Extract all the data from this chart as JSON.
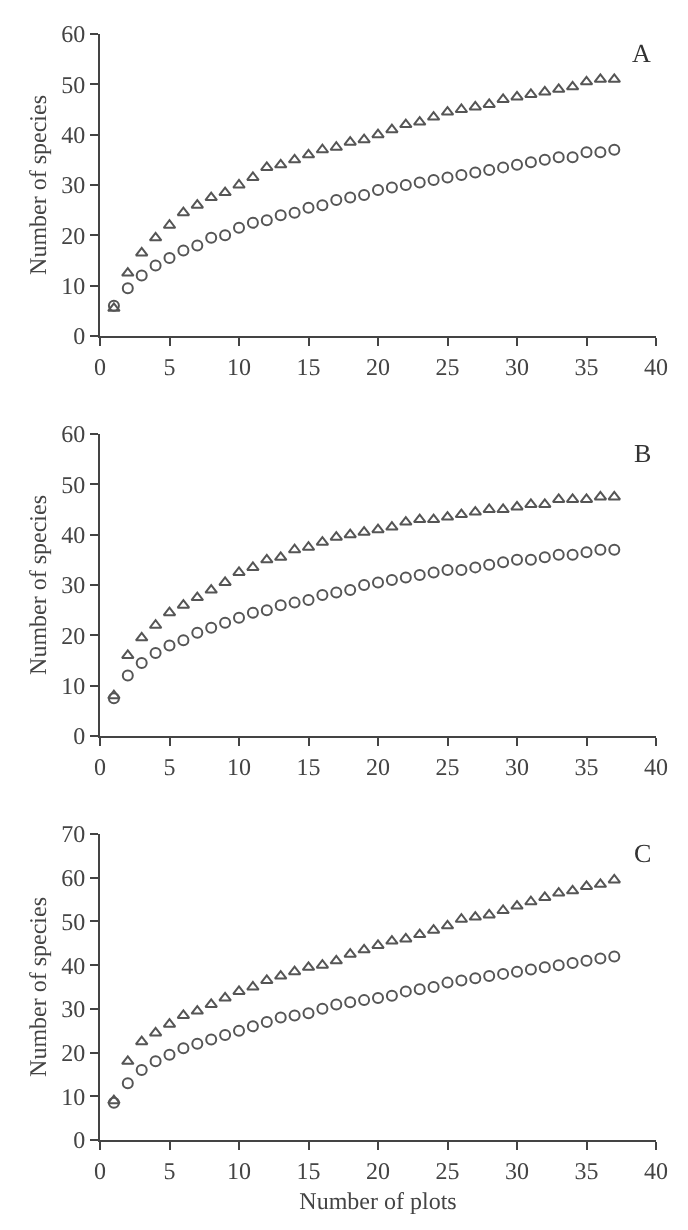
{
  "chart_data": [
    {
      "type": "scatter",
      "ylabel": "Number of species",
      "annotations": [
        "A"
      ],
      "xlim": [
        0,
        40
      ],
      "xticks": [
        0,
        5,
        10,
        15,
        20,
        25,
        30,
        35,
        40
      ],
      "ylim": [
        0,
        60
      ],
      "yticks": [
        0,
        10,
        20,
        30,
        40,
        50,
        60
      ],
      "x": [
        1,
        2,
        3,
        4,
        5,
        6,
        7,
        8,
        9,
        10,
        11,
        12,
        13,
        14,
        15,
        16,
        17,
        18,
        19,
        20,
        21,
        22,
        23,
        24,
        25,
        26,
        27,
        28,
        29,
        30,
        31,
        32,
        33,
        34,
        35,
        36,
        37
      ],
      "series": [
        {
          "color": "#555555",
          "marker": "triangle",
          "values": [
            5.5,
            12.5,
            16.5,
            19.5,
            22,
            24.5,
            26,
            27.5,
            28.5,
            30,
            31.5,
            33.5,
            34,
            35,
            36,
            37,
            37.5,
            38.5,
            39,
            40,
            41,
            42,
            42.5,
            43.5,
            44.5,
            45,
            45.5,
            46,
            47,
            47.5,
            48,
            48.5,
            49,
            49.5,
            50.5,
            51,
            51
          ]
        },
        {
          "color": "#555555",
          "marker": "circle",
          "values": [
            6,
            9.5,
            12,
            14,
            15.5,
            17,
            18,
            19.5,
            20,
            21.5,
            22.5,
            23,
            24,
            24.5,
            25.5,
            26,
            27,
            27.5,
            28,
            29,
            29.5,
            30,
            30.5,
            31,
            31.5,
            32,
            32.5,
            33,
            33.5,
            34,
            34.5,
            35,
            35.5,
            35.5,
            36.5,
            36.5,
            37
          ]
        }
      ]
    },
    {
      "type": "scatter",
      "ylabel": "Number of species",
      "annotations": [
        "B"
      ],
      "xlim": [
        0,
        40
      ],
      "xticks": [
        0,
        5,
        10,
        15,
        20,
        25,
        30,
        35,
        40
      ],
      "ylim": [
        0,
        60
      ],
      "yticks": [
        0,
        10,
        20,
        30,
        40,
        50,
        60
      ],
      "x": [
        1,
        2,
        3,
        4,
        5,
        6,
        7,
        8,
        9,
        10,
        11,
        12,
        13,
        14,
        15,
        16,
        17,
        18,
        19,
        20,
        21,
        22,
        23,
        24,
        25,
        26,
        27,
        28,
        29,
        30,
        31,
        32,
        33,
        34,
        35,
        36,
        37
      ],
      "series": [
        {
          "color": "#555555",
          "marker": "triangle",
          "values": [
            8,
            16,
            19.5,
            22,
            24.5,
            26,
            27.5,
            29,
            30.5,
            32.5,
            33.5,
            35,
            35.5,
            37,
            37.5,
            38.5,
            39.5,
            40,
            40.5,
            41,
            41.5,
            42.5,
            43,
            43,
            43.5,
            44,
            44.5,
            45,
            45,
            45.5,
            46,
            46,
            47,
            47,
            47,
            47.5,
            47.5
          ]
        },
        {
          "color": "#555555",
          "marker": "circle",
          "values": [
            7.5,
            12,
            14.5,
            16.5,
            18,
            19,
            20.5,
            21.5,
            22.5,
            23.5,
            24.5,
            25,
            26,
            26.5,
            27,
            28,
            28.5,
            29,
            30,
            30.5,
            31,
            31.5,
            32,
            32.5,
            33,
            33,
            33.5,
            34,
            34.5,
            35,
            35,
            35.5,
            36,
            36,
            36.5,
            37,
            37
          ]
        }
      ]
    },
    {
      "type": "scatter",
      "xlabel": "Number of plots",
      "ylabel": "Number of species",
      "annotations": [
        "C"
      ],
      "xlim": [
        0,
        40
      ],
      "xticks": [
        0,
        5,
        10,
        15,
        20,
        25,
        30,
        35,
        40
      ],
      "ylim": [
        0,
        70
      ],
      "yticks": [
        0,
        10,
        20,
        30,
        40,
        50,
        60,
        70
      ],
      "x": [
        1,
        2,
        3,
        4,
        5,
        6,
        7,
        8,
        9,
        10,
        11,
        12,
        13,
        14,
        15,
        16,
        17,
        18,
        19,
        20,
        21,
        22,
        23,
        24,
        25,
        26,
        27,
        28,
        29,
        30,
        31,
        32,
        33,
        34,
        35,
        36,
        37
      ],
      "series": [
        {
          "color": "#555555",
          "marker": "triangle",
          "values": [
            9,
            18,
            22.5,
            24.5,
            26.5,
            28.5,
            29.5,
            31,
            32.5,
            34,
            35,
            36.5,
            37.5,
            38.5,
            39.5,
            40,
            41,
            42.5,
            43.5,
            44.5,
            45.5,
            46,
            47,
            48,
            49,
            50.5,
            51,
            51.5,
            52.5,
            53.5,
            54.5,
            55.5,
            56.5,
            57,
            58,
            58.5,
            59.5
          ]
        },
        {
          "color": "#555555",
          "marker": "circle",
          "values": [
            8.5,
            13,
            16,
            18,
            19.5,
            21,
            22,
            23,
            24,
            25,
            26,
            27,
            28,
            28.5,
            29,
            30,
            31,
            31.5,
            32,
            32.5,
            33,
            34,
            34.5,
            35,
            36,
            36.5,
            37,
            37.5,
            38,
            38.5,
            39,
            39.5,
            40,
            40.5,
            41,
            41.5,
            42
          ]
        }
      ]
    }
  ]
}
